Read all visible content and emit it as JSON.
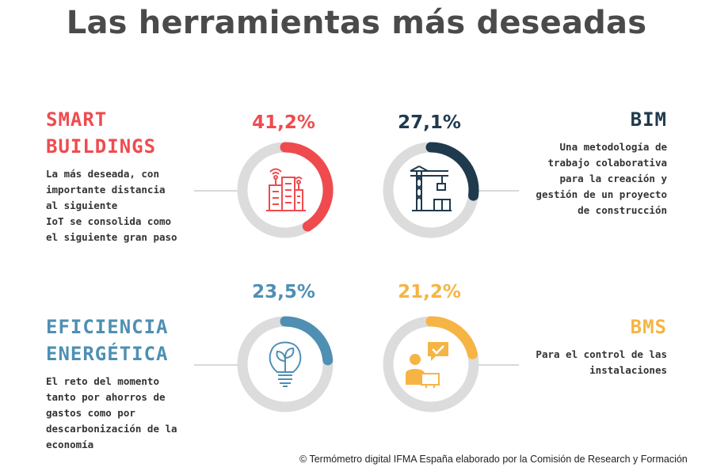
{
  "title": "Las herramientas más deseadas",
  "colors": {
    "smart": "#ef4b4f",
    "bim": "#1f3a4d",
    "efficiency": "#4f8fb3",
    "bms": "#f5b444",
    "track": "#dcdcdc",
    "title": "#4a4a4a"
  },
  "chart_data": {
    "type": "donut",
    "value_unit": "%",
    "items": [
      {
        "key": "smart",
        "heading": [
          "SMART",
          "BUILDINGS"
        ],
        "value": 41.2,
        "value_label": "41,2%",
        "description": [
          "La más deseada, con",
          "importante distancia",
          "al siguiente",
          "IoT se consolida como",
          "el siguiente gran paso"
        ],
        "color": "#ef4b4f",
        "icon": "smart-building-icon"
      },
      {
        "key": "bim",
        "heading": [
          "BIM"
        ],
        "value": 27.1,
        "value_label": "27,1%",
        "description": [
          "Una metodología de",
          "trabajo colaborativa",
          "para la creación y",
          "gestión de un proyecto",
          "de construcción"
        ],
        "color": "#1f3a4d",
        "icon": "construction-crane-icon"
      },
      {
        "key": "efficiency",
        "heading": [
          "EFICIENCIA",
          "ENERGÉTICA"
        ],
        "value": 23.5,
        "value_label": "23,5%",
        "description": [
          "El reto del momento",
          "tanto por ahorros de",
          "gastos como por",
          "descarbonización de la",
          "economía"
        ],
        "color": "#4f8fb3",
        "icon": "eco-lightbulb-icon"
      },
      {
        "key": "bms",
        "heading": [
          "BMS"
        ],
        "value": 21.2,
        "value_label": "21,2%",
        "description": [
          "Para el control de las",
          "instalaciones"
        ],
        "color": "#f5b444",
        "icon": "operator-approval-icon"
      }
    ]
  },
  "footer": "© Termómetro digital IFMA España elaborado por la Comisión de Research y Formación"
}
